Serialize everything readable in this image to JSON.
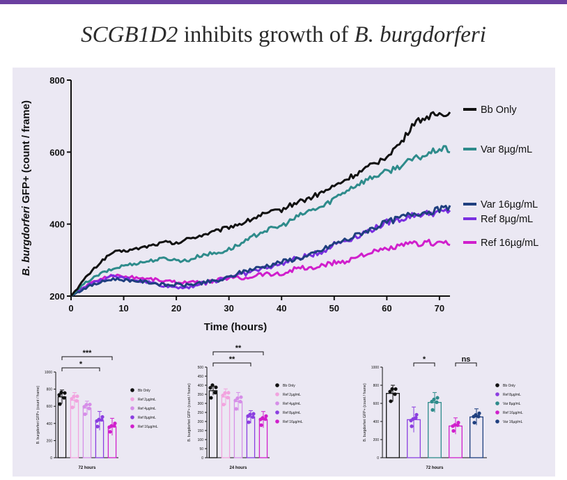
{
  "page": {
    "title_gene": "SCGB1D2",
    "title_mid": " inhibits growth of ",
    "title_species": "B. burgdorferi",
    "accent": "#6b3fa0"
  },
  "chart_data": [
    {
      "type": "line",
      "title": "",
      "xlabel": "Time (hours)",
      "ylabel_italic": "B. burgdorferi",
      "ylabel_rest": " GFP+ (count / frame)",
      "xlim": [
        0,
        72
      ],
      "ylim": [
        200,
        800
      ],
      "xticks": [
        "0",
        "10",
        "20",
        "30",
        "40",
        "50",
        "60",
        "70"
      ],
      "yticks": [
        "200",
        "400",
        "600",
        "800"
      ],
      "x": [
        0,
        3,
        6,
        8,
        10,
        12,
        15,
        18,
        20,
        22,
        25,
        28,
        30,
        33,
        36,
        40,
        43,
        45,
        48,
        50,
        53,
        55,
        58,
        60,
        63,
        65,
        68,
        70,
        72
      ],
      "series": [
        {
          "name": "Bb Only",
          "color": "#111111",
          "values": [
            200,
            255,
            300,
            322,
            325,
            330,
            340,
            350,
            345,
            358,
            370,
            382,
            392,
            405,
            425,
            440,
            462,
            470,
            490,
            505,
            530,
            545,
            570,
            590,
            630,
            680,
            700,
            705,
            710
          ]
        },
        {
          "name": "Var 8µg/mL",
          "color": "#2e8b8b",
          "values": [
            200,
            240,
            265,
            275,
            285,
            290,
            298,
            305,
            300,
            298,
            315,
            320,
            330,
            350,
            378,
            395,
            420,
            435,
            450,
            472,
            500,
            515,
            535,
            545,
            565,
            580,
            595,
            610,
            605
          ]
        },
        {
          "name": "Var 16µg/mL",
          "color": "#1f3f7f",
          "values": [
            200,
            225,
            240,
            248,
            245,
            243,
            238,
            230,
            232,
            230,
            238,
            242,
            252,
            270,
            280,
            295,
            305,
            310,
            330,
            345,
            360,
            375,
            392,
            405,
            420,
            430,
            435,
            440,
            445
          ]
        },
        {
          "name": "Ref 8µg/mL",
          "color": "#7a2fe0",
          "values": [
            200,
            230,
            245,
            255,
            250,
            245,
            238,
            228,
            225,
            225,
            235,
            245,
            255,
            262,
            275,
            290,
            305,
            312,
            325,
            345,
            358,
            372,
            390,
            405,
            415,
            425,
            430,
            432,
            438
          ]
        },
        {
          "name": "Ref 16µg/mL",
          "color": "#d01fcc",
          "values": [
            200,
            230,
            250,
            258,
            255,
            252,
            248,
            242,
            238,
            240,
            235,
            245,
            252,
            250,
            262,
            260,
            280,
            275,
            285,
            292,
            300,
            315,
            322,
            330,
            340,
            345,
            348,
            350,
            348
          ]
        }
      ]
    },
    {
      "type": "bar",
      "xlabel": "72 hours",
      "ylabel": "B. burgdorferi GFP+ (count / frame)",
      "ylim": [
        0,
        1000
      ],
      "yticks": [
        "0",
        "200",
        "400",
        "600",
        "800",
        "1000"
      ],
      "categories": [
        "Bb Only",
        "Ref 2µg/mL",
        "Ref 4µg/mL",
        "Ref 8µg/mL",
        "Ref 16µg/mL"
      ],
      "values": [
        710,
        670,
        580,
        430,
        360
      ],
      "errors": [
        80,
        90,
        80,
        110,
        100
      ],
      "colors": [
        "#111111",
        "#f2a3df",
        "#d68ee8",
        "#8b3ee0",
        "#d01fcc"
      ],
      "significance": [
        {
          "label": "*"
        },
        {
          "label": "***"
        }
      ]
    },
    {
      "type": "bar",
      "xlabel": "24 hours",
      "ylabel": "B. burgdorferi GFP+ (count / frame)",
      "ylim": [
        0,
        500
      ],
      "yticks": [
        "0",
        "50",
        "100",
        "150",
        "200",
        "250",
        "300",
        "350",
        "400",
        "450",
        "500"
      ],
      "categories": [
        "Bb Only",
        "Ref 2µg/mL",
        "Ref 4µg/mL",
        "Ref 8µg/mL",
        "Ref 16µg/mL"
      ],
      "values": [
        370,
        335,
        310,
        225,
        210
      ],
      "errors": [
        25,
        45,
        50,
        35,
        45
      ],
      "colors": [
        "#111111",
        "#f2a3df",
        "#d68ee8",
        "#8b3ee0",
        "#d01fcc"
      ],
      "significance": [
        {
          "label": "**"
        },
        {
          "label": "**"
        }
      ]
    },
    {
      "type": "bar",
      "xlabel": "72 hours",
      "ylabel": "B. burgdorferi GFP+ (count / frame)",
      "ylim": [
        0,
        1000
      ],
      "yticks": [
        "0",
        "200",
        "400",
        "600",
        "800",
        "1000"
      ],
      "categories": [
        "Bb Only",
        "Ref 8µg/mL",
        "Var 8µg/mL",
        "Ref 16µg/mL",
        "Var 16µg/mL"
      ],
      "values": [
        710,
        420,
        610,
        350,
        450
      ],
      "errors": [
        90,
        140,
        110,
        90,
        90
      ],
      "colors": [
        "#111111",
        "#8b3ee0",
        "#2e8b8b",
        "#d01fcc",
        "#1f3f7f"
      ],
      "significance": [
        {
          "label": "*"
        },
        {
          "label": "ns"
        }
      ]
    }
  ]
}
